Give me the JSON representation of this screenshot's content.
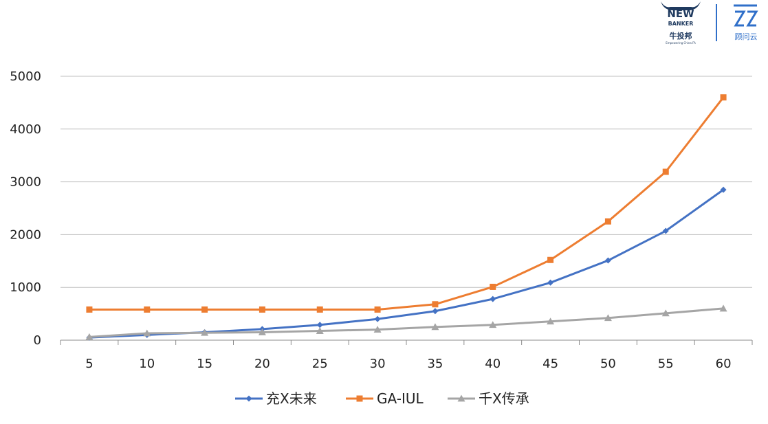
{
  "logo": {
    "newbanker_line1": "NEW",
    "newbanker_line2": "BANKER",
    "newbanker_cn": "牛投邦",
    "newbanker_tagline": "Empowering China FA",
    "cloud_cn": "顾问云"
  },
  "chart_data": {
    "type": "line",
    "title": "",
    "xlabel": "",
    "ylabel": "",
    "x": [
      5,
      10,
      15,
      20,
      25,
      30,
      35,
      40,
      45,
      50,
      55,
      60
    ],
    "ylim": [
      0,
      5000
    ],
    "yticks": [
      0,
      1000,
      2000,
      3000,
      4000,
      5000
    ],
    "grid": true,
    "legend_position": "bottom",
    "series": [
      {
        "name": "充X未来",
        "color": "#4472C4",
        "marker": "diamond",
        "values": [
          50,
          100,
          150,
          210,
          290,
          400,
          550,
          780,
          1090,
          1510,
          2070,
          2850
        ]
      },
      {
        "name": "GA-IUL",
        "color": "#ED7D31",
        "marker": "square",
        "values": [
          580,
          580,
          580,
          580,
          580,
          580,
          680,
          1010,
          1520,
          2250,
          3190,
          4600
        ]
      },
      {
        "name": "千X传承",
        "color": "#A5A5A5",
        "marker": "triangle",
        "values": [
          60,
          130,
          140,
          150,
          175,
          200,
          250,
          290,
          355,
          420,
          510,
          600
        ]
      }
    ]
  }
}
